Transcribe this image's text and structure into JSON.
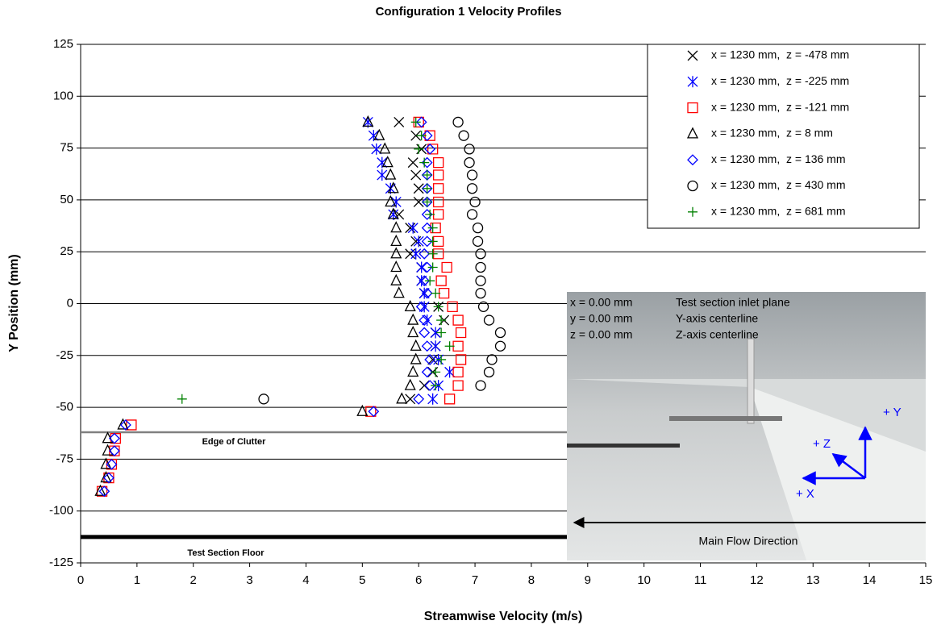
{
  "chart_data": {
    "type": "scatter",
    "title": "Configuration 1 Velocity Profiles",
    "x_label": "Streamwise Velocity (m/s)",
    "y_label": "Y Position (mm)",
    "xlim": [
      0,
      15
    ],
    "ylim": [
      -125,
      125
    ],
    "xticks": [
      0,
      1,
      2,
      3,
      4,
      5,
      6,
      7,
      8,
      9,
      10,
      11,
      12,
      13,
      14,
      15
    ],
    "yticks": [
      -125,
      -100,
      -75,
      -50,
      -25,
      0,
      25,
      50,
      75,
      100,
      125
    ],
    "grid": "y",
    "legend": "upper right",
    "annotations": [
      {
        "text": "Edge of Clutter",
        "y": -62,
        "color": "#808080"
      },
      {
        "text": "Test Section Floor",
        "y": -112.5,
        "color": "#000000"
      }
    ],
    "series": [
      {
        "name": "x = 1230 mm,  z = -478 mm",
        "color": "#000000",
        "marker": "x",
        "x": [
          5.65,
          5.95,
          6.05,
          5.9,
          5.95,
          6.0,
          6.0,
          5.65,
          5.85,
          5.95,
          5.85,
          6.05,
          6.05,
          6.1,
          6.35,
          6.45,
          6.3,
          6.3,
          6.25,
          6.25,
          6.1,
          5.85
        ],
        "y": [
          87.5,
          81,
          74.5,
          68,
          62,
          55.5,
          49,
          43,
          36.5,
          30,
          24,
          17.5,
          11,
          5,
          -1.5,
          -8,
          -14,
          -20.5,
          -27,
          -33,
          -39.5,
          -46
        ]
      },
      {
        "name": "x = 1230 mm,  z = -225 mm",
        "color": "#0000ff",
        "marker": "asterisk",
        "x": [
          5.1,
          5.2,
          5.25,
          5.35,
          5.35,
          5.5,
          5.6,
          5.55,
          5.9,
          6.0,
          5.95,
          6.05,
          6.05,
          6.1,
          6.1,
          6.15,
          6.3,
          6.3,
          6.35,
          6.55,
          6.35,
          6.25
        ],
        "y": [
          87.5,
          81,
          74.5,
          68,
          62,
          55.5,
          49,
          43,
          36.5,
          30,
          24,
          17.5,
          11,
          5,
          -1.5,
          -8,
          -14,
          -20.5,
          -27,
          -33,
          -39.5,
          -46
        ]
      },
      {
        "name": "x = 1230 mm,  z = -121 mm",
        "color": "#ff0000",
        "marker": "square",
        "x": [
          6.0,
          6.2,
          6.25,
          6.35,
          6.35,
          6.35,
          6.35,
          6.35,
          6.3,
          6.35,
          6.35,
          6.5,
          6.4,
          6.45,
          6.6,
          6.7,
          6.75,
          6.7,
          6.75,
          6.7,
          6.7,
          6.55,
          5.15,
          0.9,
          0.62,
          0.6,
          0.55,
          0.5,
          0.38
        ],
        "y": [
          87.5,
          81,
          74.5,
          68,
          62,
          55.5,
          49,
          43,
          36.5,
          30,
          24,
          17.5,
          11,
          5,
          -1.5,
          -8,
          -14,
          -20.5,
          -27,
          -33,
          -39.5,
          -46,
          -52,
          -58.5,
          -65,
          -71,
          -77.5,
          -84,
          -90.5
        ]
      },
      {
        "name": "x = 1230 mm,  z = 8 mm",
        "color": "#000000",
        "marker": "triangle",
        "x": [
          5.1,
          5.3,
          5.4,
          5.45,
          5.5,
          5.55,
          5.5,
          5.55,
          5.6,
          5.6,
          5.6,
          5.6,
          5.6,
          5.65,
          5.85,
          5.9,
          5.9,
          5.95,
          5.95,
          5.9,
          5.85,
          5.7,
          5.0,
          0.75,
          0.48,
          0.48,
          0.45,
          0.45,
          0.35
        ],
        "y": [
          87.5,
          81,
          74.5,
          68,
          62,
          55.5,
          49,
          43,
          36.5,
          30,
          24,
          17.5,
          11,
          5,
          -1.5,
          -8,
          -14,
          -20.5,
          -27,
          -33,
          -39.5,
          -46,
          -52,
          -58.5,
          -65,
          -71,
          -77.5,
          -84,
          -90.5
        ]
      },
      {
        "name": "x = 1230 mm,  z = 136 mm",
        "color": "#0000ff",
        "marker": "diamond",
        "x": [
          6.05,
          6.15,
          6.2,
          6.15,
          6.15,
          6.15,
          6.15,
          6.15,
          6.15,
          6.15,
          6.1,
          6.15,
          6.1,
          6.15,
          6.05,
          6.1,
          6.1,
          6.15,
          6.2,
          6.15,
          6.2,
          6.0,
          5.2,
          0.8,
          0.6,
          0.6,
          0.55,
          0.5,
          0.42
        ],
        "y": [
          87.5,
          81,
          74.5,
          68,
          62,
          55.5,
          49,
          43,
          36.5,
          30,
          24,
          17.5,
          11,
          5,
          -1.5,
          -8,
          -14,
          -20.5,
          -27,
          -33,
          -39.5,
          -46,
          -52,
          -58.5,
          -65,
          -71,
          -77.5,
          -84,
          -90.5
        ]
      },
      {
        "name": "x = 1230 mm,  z = 430 mm",
        "color": "#000000",
        "marker": "circle",
        "x": [
          6.7,
          6.8,
          6.9,
          6.9,
          6.95,
          6.95,
          7.0,
          6.95,
          7.05,
          7.05,
          7.1,
          7.1,
          7.1,
          7.1,
          7.15,
          7.25,
          7.45,
          7.45,
          7.3,
          7.25,
          7.1,
          3.25
        ],
        "y": [
          87.5,
          81,
          74.5,
          68,
          62,
          55.5,
          49,
          43,
          36.5,
          30,
          24,
          17.5,
          11,
          5,
          -1.5,
          -8,
          -14,
          -20.5,
          -27,
          -33,
          -39.5,
          -46
        ]
      },
      {
        "name": "x = 1230 mm,  z = 681 mm",
        "color": "#008000",
        "marker": "plus",
        "x": [
          5.95,
          6.05,
          6.0,
          6.1,
          6.15,
          6.15,
          6.15,
          6.2,
          6.25,
          6.25,
          6.25,
          6.25,
          6.2,
          6.3,
          6.35,
          6.4,
          6.4,
          6.55,
          6.4,
          6.3,
          6.3,
          1.8
        ],
        "y": [
          87.5,
          81,
          74.5,
          68,
          62,
          55.5,
          49,
          43,
          36.5,
          30,
          24,
          17.5,
          11,
          5,
          -1.5,
          -8,
          -14,
          -20.5,
          -27,
          -33,
          -39.5,
          -46
        ]
      }
    ]
  },
  "inset": {
    "coords": [
      {
        "label": "x = 0.00 mm",
        "desc": "Test section inlet plane"
      },
      {
        "label": "y = 0.00 mm",
        "desc": "Y-axis centerline"
      },
      {
        "label": "z = 0.00 mm",
        "desc": "Z-axis centerline"
      }
    ],
    "axes": {
      "y": "+ Y",
      "z": "+ Z",
      "x": "+ X"
    },
    "flow": "Main Flow Direction"
  }
}
